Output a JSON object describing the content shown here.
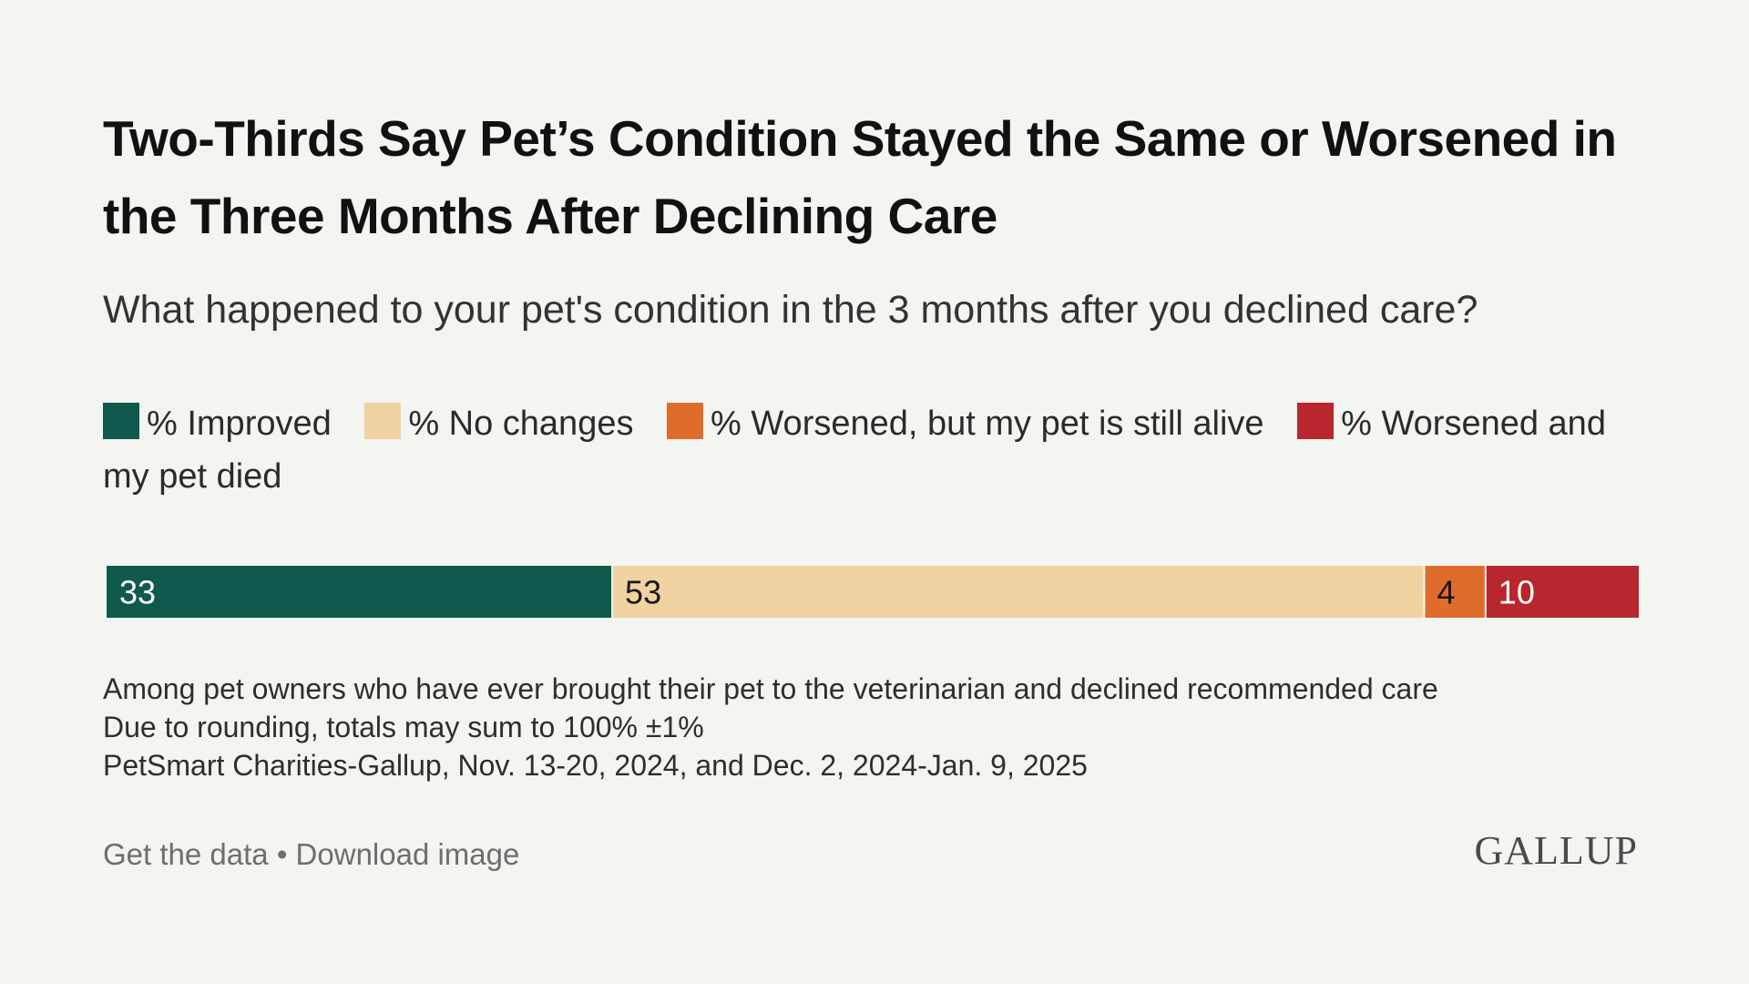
{
  "title": "Two-Thirds Say Pet’s Condition Stayed the Same or Worsened in the Three Months After Declining Care",
  "subtitle": "What happened to your pet's condition in the 3 months after you declined care?",
  "legend": [
    {
      "label": "% Improved",
      "color": "#0f5a4c"
    },
    {
      "label": "% No changes",
      "color": "#f0d3a1"
    },
    {
      "label": "% Worsened, but my pet is still alive",
      "color": "#e06c2c"
    },
    {
      "label": "% Worsened and my pet died",
      "color": "#b8272d"
    }
  ],
  "notes": {
    "line1": "Among pet owners who have ever brought their pet to the veterinarian and declined recommended care",
    "line2": "Due to rounding, totals may sum to 100% ±1%",
    "line3": "PetSmart Charities-Gallup, Nov. 13-20, 2024, and Dec. 2, 2024-Jan. 9, 2025"
  },
  "footer": {
    "get_data": "Get the data",
    "separator": "•",
    "download": "Download image",
    "logo": "GALLUP"
  },
  "chart_data": {
    "type": "bar",
    "orientation": "horizontal-stacked",
    "title": "Two-Thirds Say Pet’s Condition Stayed the Same or Worsened in the Three Months After Declining Care",
    "subtitle": "What happened to your pet's condition in the 3 months after you declined care?",
    "series": [
      {
        "name": "% Improved",
        "values": [
          33
        ],
        "color": "#0f5a4c",
        "label_color": "#ffffff"
      },
      {
        "name": "% No changes",
        "values": [
          53
        ],
        "color": "#f0d3a1",
        "label_color": "#1a1a1a"
      },
      {
        "name": "% Worsened, but my pet is still alive",
        "values": [
          4
        ],
        "color": "#e06c2c",
        "label_color": "#1a1a1a"
      },
      {
        "name": "% Worsened and my pet died",
        "values": [
          10
        ],
        "color": "#b8272d",
        "label_color": "#ffffff"
      }
    ],
    "legend_position": "top",
    "grid": false
  }
}
